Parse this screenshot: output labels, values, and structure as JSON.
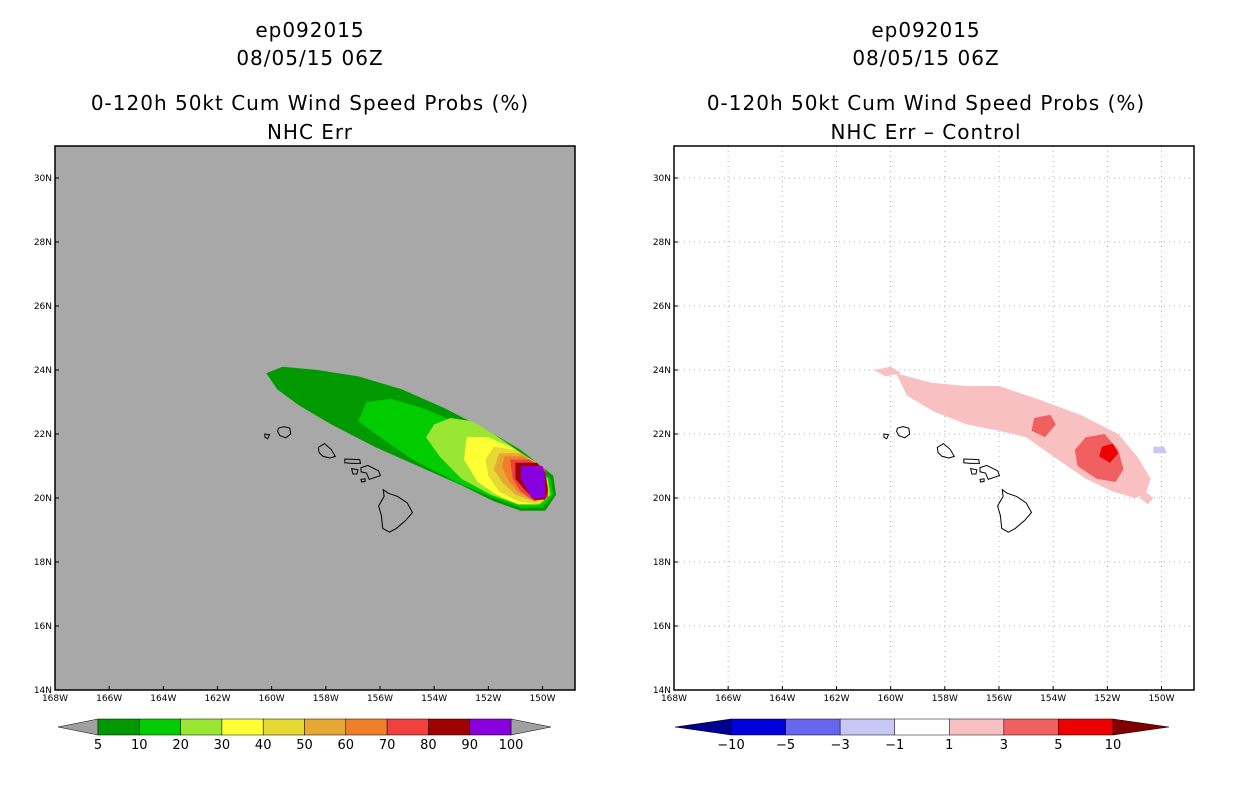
{
  "left_panel": {
    "storm_id": "ep092015",
    "datetime": "08/05/15 06Z",
    "title": "0-120h 50kt Cum Wind Speed Probs (%)",
    "subtitle": "NHC Err",
    "colors": {
      "background": "#a8a8a8"
    }
  },
  "right_panel": {
    "storm_id": "ep092015",
    "datetime": "08/05/15 06Z",
    "title": "0-120h 50kt Cum Wind Speed Probs (%)",
    "subtitle": "NHC Err – Control",
    "colors": {
      "background": "#ffffff"
    }
  },
  "chart_data": [
    {
      "type": "heatmap",
      "map_type": "filled contour probability map",
      "title": "0-120h 50kt Cum Wind Speed Probs (%)",
      "subtitle": "NHC Err",
      "x_ticks": [
        "168W",
        "166W",
        "164W",
        "162W",
        "160W",
        "158W",
        "156W",
        "154W",
        "152W",
        "150W"
      ],
      "x_values": [
        -168,
        -166,
        -164,
        -162,
        -160,
        -158,
        -156,
        -154,
        -152,
        -150
      ],
      "y_ticks": [
        "14N",
        "16N",
        "18N",
        "20N",
        "22N",
        "24N",
        "26N",
        "28N",
        "30N"
      ],
      "y_values": [
        14,
        16,
        18,
        20,
        22,
        24,
        26,
        28,
        30
      ],
      "xlim": [
        -168,
        -148.8
      ],
      "ylim": [
        14,
        31
      ],
      "grid": false,
      "colorbar": {
        "levels": [
          "5",
          "10",
          "20",
          "30",
          "40",
          "50",
          "60",
          "70",
          "80",
          "90",
          "100"
        ],
        "colors": [
          "#009900",
          "#00cc00",
          "#99e633",
          "#ffff33",
          "#e6d933",
          "#e6a833",
          "#f08028",
          "#f04040",
          "#a00000",
          "#8800dd"
        ],
        "extend_color": "#a0a0a0"
      },
      "contours": [
        {
          "level": 5,
          "color": "#009900",
          "polygon": [
            [
              -160.2,
              23.9
            ],
            [
              -159.6,
              24.1
            ],
            [
              -158.3,
              24.0
            ],
            [
              -156.8,
              23.8
            ],
            [
              -155.2,
              23.4
            ],
            [
              -153.6,
              22.8
            ],
            [
              -152.0,
              22.1
            ],
            [
              -150.8,
              21.5
            ],
            [
              -149.6,
              20.7
            ],
            [
              -149.5,
              20.1
            ],
            [
              -149.9,
              19.6
            ],
            [
              -150.8,
              19.6
            ],
            [
              -151.8,
              19.9
            ],
            [
              -153.0,
              20.4
            ],
            [
              -154.6,
              21.0
            ],
            [
              -156.2,
              21.6
            ],
            [
              -157.8,
              22.3
            ],
            [
              -159.0,
              22.9
            ],
            [
              -159.8,
              23.4
            ]
          ]
        },
        {
          "level": 10,
          "color": "#00cc00",
          "polygon": [
            [
              -156.5,
              23.0
            ],
            [
              -155.6,
              23.1
            ],
            [
              -154.4,
              22.8
            ],
            [
              -153.0,
              22.3
            ],
            [
              -151.6,
              21.6
            ],
            [
              -150.6,
              21.2
            ],
            [
              -149.7,
              20.6
            ],
            [
              -149.6,
              20.1
            ],
            [
              -150.0,
              19.7
            ],
            [
              -150.8,
              19.7
            ],
            [
              -151.8,
              20.0
            ],
            [
              -153.2,
              20.5
            ],
            [
              -154.8,
              21.2
            ],
            [
              -156.0,
              21.9
            ],
            [
              -156.8,
              22.4
            ]
          ]
        },
        {
          "level": 20,
          "color": "#99e633",
          "polygon": [
            [
              -154.0,
              22.3
            ],
            [
              -153.4,
              22.5
            ],
            [
              -152.6,
              22.4
            ],
            [
              -151.8,
              22.0
            ],
            [
              -150.6,
              21.3
            ],
            [
              -149.8,
              20.6
            ],
            [
              -149.7,
              20.1
            ],
            [
              -150.1,
              19.8
            ],
            [
              -150.9,
              19.8
            ],
            [
              -151.9,
              20.1
            ],
            [
              -153.0,
              20.6
            ],
            [
              -153.8,
              21.3
            ],
            [
              -154.3,
              21.9
            ]
          ]
        },
        {
          "level": 30,
          "color": "#ffff33",
          "polygon": [
            [
              -152.8,
              21.9
            ],
            [
              -152.0,
              21.9
            ],
            [
              -151.2,
              21.6
            ],
            [
              -150.3,
              21.1
            ],
            [
              -149.8,
              20.5
            ],
            [
              -149.8,
              20.0
            ],
            [
              -150.2,
              19.8
            ],
            [
              -150.9,
              19.8
            ],
            [
              -151.7,
              20.1
            ],
            [
              -152.4,
              20.5
            ],
            [
              -152.9,
              21.2
            ]
          ]
        },
        {
          "level": 40,
          "color": "#e6d933",
          "polygon": [
            [
              -151.8,
              21.6
            ],
            [
              -151.0,
              21.5
            ],
            [
              -150.2,
              21.1
            ],
            [
              -149.8,
              20.5
            ],
            [
              -149.8,
              20.0
            ],
            [
              -150.2,
              19.8
            ],
            [
              -150.9,
              19.9
            ],
            [
              -151.6,
              20.2
            ],
            [
              -152.0,
              20.7
            ],
            [
              -152.1,
              21.2
            ]
          ]
        },
        {
          "level": 50,
          "color": "#e6a833",
          "polygon": [
            [
              -151.6,
              21.4
            ],
            [
              -150.8,
              21.4
            ],
            [
              -150.1,
              21.0
            ],
            [
              -149.8,
              20.4
            ],
            [
              -149.8,
              20.0
            ],
            [
              -150.3,
              19.9
            ],
            [
              -151.0,
              20.1
            ],
            [
              -151.5,
              20.5
            ],
            [
              -151.8,
              20.9
            ]
          ]
        },
        {
          "level": 60,
          "color": "#f08028",
          "polygon": [
            [
              -151.4,
              21.3
            ],
            [
              -150.7,
              21.3
            ],
            [
              -150.0,
              21.0
            ],
            [
              -149.8,
              20.4
            ],
            [
              -149.8,
              20.0
            ],
            [
              -150.3,
              19.9
            ],
            [
              -150.9,
              20.2
            ],
            [
              -151.3,
              20.6
            ],
            [
              -151.5,
              21.0
            ]
          ]
        },
        {
          "level": 70,
          "color": "#f04040",
          "polygon": [
            [
              -151.2,
              21.2
            ],
            [
              -150.5,
              21.2
            ],
            [
              -149.9,
              20.9
            ],
            [
              -149.8,
              20.3
            ],
            [
              -149.8,
              20.0
            ],
            [
              -150.3,
              19.9
            ],
            [
              -150.8,
              20.2
            ],
            [
              -151.1,
              20.6
            ]
          ]
        },
        {
          "level": 80,
          "color": "#a00000",
          "polygon": [
            [
              -151.0,
              21.1
            ],
            [
              -150.2,
              21.1
            ],
            [
              -149.9,
              20.8
            ],
            [
              -149.8,
              20.2
            ],
            [
              -149.9,
              19.95
            ],
            [
              -150.3,
              19.95
            ],
            [
              -150.7,
              20.3
            ],
            [
              -151.0,
              20.6
            ]
          ]
        },
        {
          "level": 90,
          "color": "#8800dd",
          "polygon": [
            [
              -150.8,
              21.0
            ],
            [
              -150.0,
              21.0
            ],
            [
              -149.9,
              20.7
            ],
            [
              -149.9,
              20.0
            ],
            [
              -150.4,
              20.0
            ],
            [
              -150.6,
              20.3
            ],
            [
              -150.8,
              20.6
            ]
          ]
        }
      ]
    },
    {
      "type": "heatmap",
      "map_type": "filled contour difference map",
      "title": "0-120h 50kt Cum Wind Speed Probs (%)",
      "subtitle": "NHC Err – Control",
      "x_ticks": [
        "168W",
        "166W",
        "164W",
        "162W",
        "160W",
        "158W",
        "156W",
        "154W",
        "152W",
        "150W"
      ],
      "x_values": [
        -168,
        -166,
        -164,
        -162,
        -160,
        -158,
        -156,
        -154,
        -152,
        -150
      ],
      "y_ticks": [
        "14N",
        "16N",
        "18N",
        "20N",
        "22N",
        "24N",
        "26N",
        "28N",
        "30N"
      ],
      "y_values": [
        14,
        16,
        18,
        20,
        22,
        24,
        26,
        28,
        30
      ],
      "xlim": [
        -168,
        -148.8
      ],
      "ylim": [
        14,
        31
      ],
      "grid": true,
      "colorbar": {
        "levels": [
          "-10",
          "-5",
          "-3",
          "-1",
          "1",
          "3",
          "5",
          "10"
        ],
        "colors": [
          "#0000dd",
          "#6666ee",
          "#c8c8f4",
          "#ffffff",
          "#f8c0c0",
          "#f06060",
          "#ee0000"
        ],
        "extend_low_color": "#000090",
        "extend_high_color": "#800000"
      },
      "contours": [
        {
          "level": 1,
          "color": "#f8c0c0",
          "polygon": [
            [
              -159.8,
              23.9
            ],
            [
              -158.5,
              23.6
            ],
            [
              -157.2,
              23.5
            ],
            [
              -156.0,
              23.5
            ],
            [
              -154.6,
              23.1
            ],
            [
              -153.0,
              22.6
            ],
            [
              -151.6,
              22.0
            ],
            [
              -150.9,
              21.3
            ],
            [
              -150.4,
              20.6
            ],
            [
              -150.6,
              20.1
            ],
            [
              -151.0,
              20.0
            ],
            [
              -151.8,
              20.2
            ],
            [
              -152.8,
              20.6
            ],
            [
              -154.0,
              21.3
            ],
            [
              -155.0,
              21.9
            ],
            [
              -156.0,
              22.1
            ],
            [
              -157.2,
              22.3
            ],
            [
              -158.4,
              22.7
            ],
            [
              -159.4,
              23.2
            ]
          ]
        },
        {
          "level": 1,
          "color": "#f8c0c0",
          "polygon": [
            [
              -160.6,
              24.0
            ],
            [
              -160.0,
              24.1
            ],
            [
              -159.6,
              23.9
            ],
            [
              -160.2,
              23.8
            ]
          ]
        },
        {
          "level": 1,
          "color": "#f8c0c0",
          "polygon": [
            [
              -150.6,
              20.2
            ],
            [
              -150.3,
              20.0
            ],
            [
              -150.5,
              19.8
            ],
            [
              -150.8,
              20.0
            ]
          ]
        },
        {
          "level": -1,
          "color": "#c8c8f4",
          "polygon": [
            [
              -150.3,
              21.6
            ],
            [
              -149.9,
              21.6
            ],
            [
              -149.8,
              21.4
            ],
            [
              -150.3,
              21.4
            ]
          ]
        },
        {
          "level": 3,
          "color": "#f06060",
          "polygon": [
            [
              -154.7,
              22.5
            ],
            [
              -154.1,
              22.6
            ],
            [
              -153.9,
              22.3
            ],
            [
              -154.3,
              21.9
            ],
            [
              -154.8,
              22.1
            ]
          ]
        },
        {
          "level": 3,
          "color": "#f06060",
          "polygon": [
            [
              -152.8,
              21.9
            ],
            [
              -152.1,
              22.0
            ],
            [
              -151.6,
              21.5
            ],
            [
              -151.4,
              20.9
            ],
            [
              -151.7,
              20.5
            ],
            [
              -152.4,
              20.6
            ],
            [
              -153.1,
              21.0
            ],
            [
              -153.2,
              21.5
            ]
          ]
        },
        {
          "level": 5,
          "color": "#ee0000",
          "polygon": [
            [
              -152.2,
              21.6
            ],
            [
              -151.8,
              21.7
            ],
            [
              -151.6,
              21.4
            ],
            [
              -151.9,
              21.1
            ],
            [
              -152.3,
              21.3
            ]
          ]
        }
      ]
    }
  ]
}
